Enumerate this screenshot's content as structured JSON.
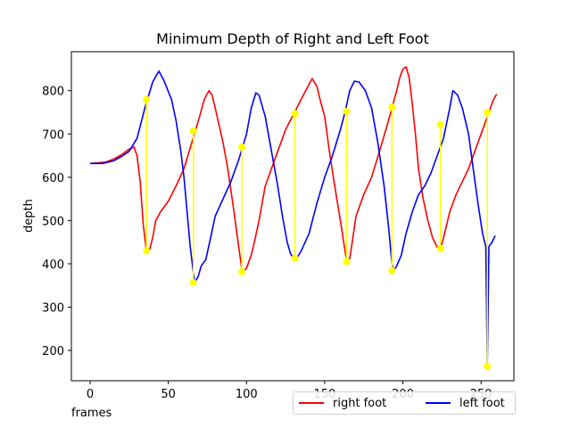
{
  "chart_data": {
    "type": "line",
    "title": "Minimum Depth of Right and Left Foot",
    "xlabel": "frames",
    "ylabel": "depth",
    "xlim": [
      -12,
      271
    ],
    "ylim": [
      130,
      890
    ],
    "xticks": [
      0,
      50,
      100,
      150,
      200,
      250
    ],
    "yticks": [
      200,
      300,
      400,
      500,
      600,
      700,
      800
    ],
    "grid": false,
    "legend_position": "bottom-right",
    "series": [
      {
        "name": "right foot",
        "color": "#ff0000",
        "points": [
          [
            0,
            632
          ],
          [
            10,
            635
          ],
          [
            15,
            642
          ],
          [
            20,
            652
          ],
          [
            25,
            665
          ],
          [
            28,
            670
          ],
          [
            30,
            650
          ],
          [
            32,
            590
          ],
          [
            34,
            490
          ],
          [
            36,
            430
          ],
          [
            38,
            432
          ],
          [
            40,
            460
          ],
          [
            42,
            500
          ],
          [
            45,
            520
          ],
          [
            50,
            545
          ],
          [
            55,
            580
          ],
          [
            60,
            620
          ],
          [
            65,
            680
          ],
          [
            70,
            740
          ],
          [
            73,
            780
          ],
          [
            76,
            800
          ],
          [
            78,
            790
          ],
          [
            80,
            760
          ],
          [
            85,
            680
          ],
          [
            88,
            620
          ],
          [
            92,
            520
          ],
          [
            95,
            440
          ],
          [
            97,
            388
          ],
          [
            98,
            382
          ],
          [
            100,
            390
          ],
          [
            103,
            420
          ],
          [
            105,
            450
          ],
          [
            108,
            500
          ],
          [
            112,
            580
          ],
          [
            115,
            610
          ],
          [
            120,
            660
          ],
          [
            125,
            710
          ],
          [
            130,
            745
          ],
          [
            135,
            780
          ],
          [
            140,
            815
          ],
          [
            142,
            828
          ],
          [
            145,
            810
          ],
          [
            147,
            780
          ],
          [
            150,
            740
          ],
          [
            153,
            660
          ],
          [
            156,
            590
          ],
          [
            160,
            500
          ],
          [
            163,
            430
          ],
          [
            164,
            410
          ],
          [
            166,
            412
          ],
          [
            168,
            460
          ],
          [
            170,
            510
          ],
          [
            175,
            560
          ],
          [
            180,
            600
          ],
          [
            185,
            660
          ],
          [
            190,
            720
          ],
          [
            193,
            760
          ],
          [
            196,
            800
          ],
          [
            198,
            830
          ],
          [
            200,
            850
          ],
          [
            202,
            855
          ],
          [
            204,
            830
          ],
          [
            206,
            770
          ],
          [
            208,
            700
          ],
          [
            210,
            620
          ],
          [
            213,
            550
          ],
          [
            216,
            500
          ],
          [
            219,
            460
          ],
          [
            222,
            438
          ],
          [
            224,
            436
          ],
          [
            226,
            460
          ],
          [
            230,
            520
          ],
          [
            234,
            560
          ],
          [
            238,
            590
          ],
          [
            242,
            620
          ],
          [
            246,
            660
          ],
          [
            250,
            700
          ],
          [
            254,
            740
          ],
          [
            258,
            780
          ],
          [
            260,
            792
          ]
        ]
      },
      {
        "name": "left foot",
        "color": "#0000ff",
        "points": [
          [
            0,
            632
          ],
          [
            8,
            632
          ],
          [
            15,
            638
          ],
          [
            20,
            648
          ],
          [
            25,
            660
          ],
          [
            30,
            690
          ],
          [
            35,
            760
          ],
          [
            40,
            820
          ],
          [
            44,
            845
          ],
          [
            47,
            825
          ],
          [
            52,
            780
          ],
          [
            55,
            730
          ],
          [
            58,
            660
          ],
          [
            60,
            600
          ],
          [
            62,
            520
          ],
          [
            64,
            440
          ],
          [
            66,
            380
          ],
          [
            67,
            358
          ],
          [
            69,
            370
          ],
          [
            71,
            395
          ],
          [
            74,
            410
          ],
          [
            77,
            460
          ],
          [
            80,
            510
          ],
          [
            85,
            550
          ],
          [
            90,
            590
          ],
          [
            95,
            640
          ],
          [
            100,
            700
          ],
          [
            103,
            760
          ],
          [
            106,
            795
          ],
          [
            108,
            790
          ],
          [
            112,
            740
          ],
          [
            116,
            660
          ],
          [
            120,
            580
          ],
          [
            123,
            510
          ],
          [
            126,
            450
          ],
          [
            128,
            425
          ],
          [
            130,
            412
          ],
          [
            132,
            412
          ],
          [
            135,
            430
          ],
          [
            140,
            470
          ],
          [
            145,
            540
          ],
          [
            150,
            600
          ],
          [
            155,
            650
          ],
          [
            160,
            710
          ],
          [
            163,
            750
          ],
          [
            166,
            800
          ],
          [
            169,
            822
          ],
          [
            172,
            820
          ],
          [
            176,
            800
          ],
          [
            180,
            760
          ],
          [
            184,
            680
          ],
          [
            188,
            580
          ],
          [
            191,
            480
          ],
          [
            193,
            400
          ],
          [
            194,
            384
          ],
          [
            196,
            395
          ],
          [
            199,
            420
          ],
          [
            202,
            470
          ],
          [
            206,
            520
          ],
          [
            210,
            560
          ],
          [
            214,
            580
          ],
          [
            218,
            610
          ],
          [
            222,
            650
          ],
          [
            226,
            690
          ],
          [
            230,
            760
          ],
          [
            232,
            800
          ],
          [
            235,
            790
          ],
          [
            238,
            760
          ],
          [
            242,
            700
          ],
          [
            245,
            620
          ],
          [
            248,
            540
          ],
          [
            251,
            470
          ],
          [
            253,
            440
          ],
          [
            254,
            165
          ],
          [
            255,
            440
          ],
          [
            257,
            450
          ],
          [
            259,
            465
          ]
        ]
      },
      {
        "name": "",
        "color": "#ffff00",
        "type": "segments",
        "segments": [
          {
            "x": 36,
            "y": [
              430,
              780
            ]
          },
          {
            "x": 66,
            "y": [
              357,
              707
            ]
          },
          {
            "x": 97,
            "y": [
              382,
              670
            ]
          },
          {
            "x": 131,
            "y": [
              413,
              747
            ]
          },
          {
            "x": 164,
            "y": [
              405,
              752
            ]
          },
          {
            "x": 193,
            "y": [
              384,
              762
            ]
          },
          {
            "x": 224,
            "y": [
              435,
              722
            ]
          },
          {
            "x": 254,
            "y": [
              163,
              750
            ]
          }
        ]
      }
    ]
  }
}
